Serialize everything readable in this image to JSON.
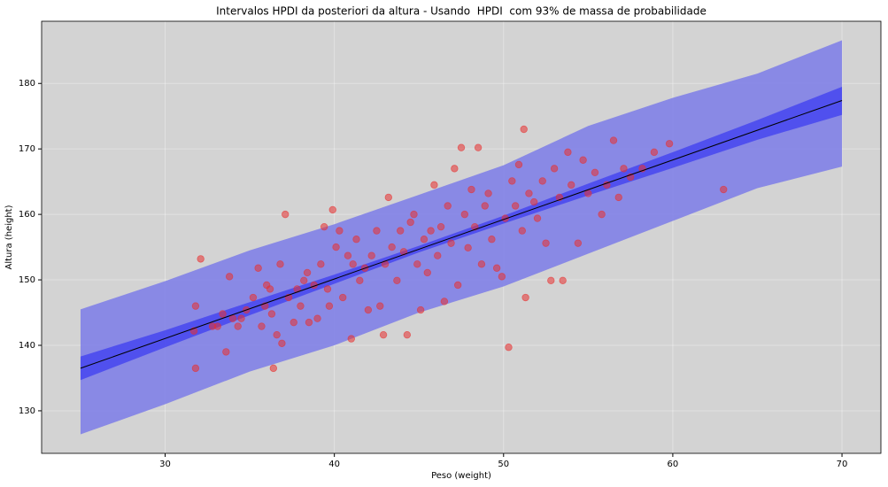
{
  "chart_data": {
    "type": "scatter",
    "title": "Intervalos HPDI da posteriori da altura - Usando  HPDI  com 93% de massa de probabilidade",
    "x_label": "Peso (weight)",
    "y_label": "Altura (height)",
    "xlim": [
      22.7,
      72.3
    ],
    "ylim": [
      123.5,
      189.5
    ],
    "xticks": [
      30,
      40,
      50,
      60,
      70
    ],
    "yticks": [
      130,
      140,
      150,
      160,
      170,
      180
    ],
    "grid": true,
    "background": "#d3d3d3",
    "bands": [
      {
        "color": "#7b7be8",
        "x": [
          25,
          30,
          35,
          40,
          45,
          50,
          55,
          60,
          65,
          70
        ],
        "lower": [
          126.4,
          131.0,
          136.0,
          140.0,
          145.0,
          149.0,
          154.0,
          159.0,
          164.0,
          167.3
        ],
        "upper": [
          145.5,
          149.8,
          154.5,
          158.5,
          163.0,
          167.5,
          173.5,
          177.8,
          181.5,
          186.6
        ]
      },
      {
        "color": "#4646f0",
        "x": [
          25,
          30,
          35,
          40,
          45,
          50,
          55,
          60,
          65,
          70
        ],
        "lower": [
          134.7,
          139.7,
          144.6,
          149.4,
          154.2,
          158.6,
          162.9,
          167.1,
          171.4,
          175.2
        ],
        "upper": [
          138.3,
          142.3,
          146.6,
          150.8,
          155.2,
          159.8,
          164.7,
          169.5,
          174.4,
          179.5
        ]
      }
    ],
    "line": {
      "color": "#000000",
      "x": [
        25,
        70
      ],
      "y": [
        136.5,
        177.4
      ]
    },
    "points": {
      "color": "#e8302f",
      "x": [
        31.8,
        31.8,
        31.7,
        32.1,
        32.8,
        33.1,
        33.4,
        33.6,
        33.8,
        34.0,
        34.3,
        34.5,
        34.8,
        35.2,
        35.5,
        35.7,
        35.9,
        36.0,
        36.2,
        36.3,
        36.4,
        36.6,
        36.8,
        36.9,
        37.1,
        37.3,
        37.6,
        37.8,
        38.0,
        38.2,
        38.4,
        38.5,
        38.8,
        39.0,
        39.2,
        39.4,
        39.6,
        39.7,
        39.9,
        40.1,
        40.3,
        40.5,
        40.8,
        41.0,
        41.1,
        41.3,
        41.5,
        41.8,
        42.0,
        42.2,
        42.5,
        42.7,
        42.9,
        43.0,
        43.2,
        43.4,
        43.7,
        43.9,
        44.1,
        44.3,
        44.5,
        44.7,
        44.9,
        45.1,
        45.3,
        45.5,
        45.7,
        45.9,
        46.1,
        46.3,
        46.5,
        46.7,
        46.9,
        47.1,
        47.3,
        47.5,
        47.7,
        47.9,
        48.1,
        48.3,
        48.5,
        48.7,
        48.9,
        49.1,
        49.3,
        49.6,
        49.9,
        50.1,
        50.3,
        50.5,
        50.7,
        50.9,
        51.1,
        51.2,
        51.3,
        51.5,
        51.8,
        52.0,
        52.3,
        52.5,
        52.8,
        53.0,
        53.3,
        53.5,
        53.8,
        54.0,
        54.4,
        54.7,
        55.0,
        55.4,
        55.8,
        56.1,
        56.5,
        56.8,
        57.1,
        57.5,
        58.2,
        58.9,
        59.8,
        63.0
      ],
      "y": [
        136.5,
        146.0,
        142.2,
        153.2,
        142.9,
        142.9,
        144.8,
        139.0,
        150.5,
        144.1,
        142.9,
        144.1,
        145.4,
        147.3,
        151.8,
        142.9,
        146.0,
        149.2,
        148.6,
        144.8,
        136.5,
        141.6,
        152.4,
        140.3,
        160.0,
        147.3,
        143.5,
        148.6,
        146.0,
        149.9,
        151.1,
        143.5,
        149.2,
        144.1,
        152.4,
        158.1,
        148.6,
        146.0,
        160.7,
        155.0,
        157.5,
        147.3,
        153.7,
        141.0,
        152.4,
        156.2,
        149.9,
        151.8,
        145.4,
        153.7,
        157.5,
        146.0,
        141.6,
        152.4,
        162.6,
        155.0,
        149.9,
        157.5,
        154.3,
        141.6,
        158.8,
        160.0,
        152.4,
        145.4,
        156.2,
        151.1,
        157.5,
        164.5,
        153.7,
        158.1,
        146.7,
        161.3,
        155.6,
        167.0,
        149.2,
        170.2,
        160.0,
        154.9,
        163.8,
        158.1,
        170.2,
        152.4,
        161.3,
        163.2,
        156.2,
        151.8,
        150.5,
        159.4,
        139.7,
        165.1,
        161.3,
        167.6,
        157.5,
        173.0,
        147.3,
        163.2,
        161.9,
        159.4,
        165.1,
        155.6,
        149.9,
        167.0,
        162.6,
        149.9,
        169.5,
        164.5,
        155.6,
        168.3,
        163.2,
        166.4,
        160.0,
        164.5,
        171.3,
        162.6,
        167.0,
        165.7,
        167.0,
        169.5,
        170.8,
        163.8
      ]
    }
  }
}
